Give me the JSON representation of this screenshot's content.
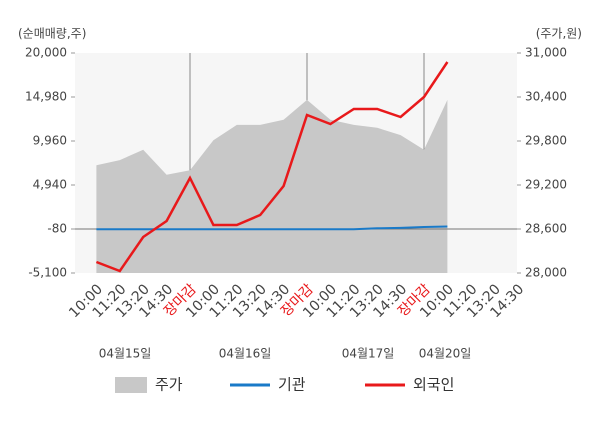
{
  "chart_data": {
    "type": "line",
    "y_axis_label": "(순매매량,주)",
    "y2_axis_label": "(주가,원)",
    "categories": [
      "10:00",
      "11:20",
      "13:20",
      "14:30",
      "장마감",
      "10:00",
      "11:20",
      "13:20",
      "14:30",
      "장마감",
      "10:00",
      "11:20",
      "13:20",
      "14:30",
      "장마감",
      "10:00",
      "11:20",
      "13:20",
      "14:30"
    ],
    "dates": [
      "04월15일",
      "04월16일",
      "04월17일",
      "04월20일"
    ],
    "ylim": [
      -5100,
      20000
    ],
    "yticks": [
      {
        "value": -5100,
        "label": "-5,100"
      },
      -80,
      {
        "value": 4940,
        "label": "4,940"
      },
      {
        "value": 9960,
        "label": "9,960"
      },
      {
        "value": 14980,
        "label": "14,980"
      },
      {
        "value": 20000,
        "label": "20,000"
      }
    ],
    "y2lim": [
      28000,
      31000
    ],
    "y2ticks": [
      {
        "value": 28000,
        "label": "28,000"
      },
      {
        "value": 28600,
        "label": "28,600"
      },
      {
        "value": 29200,
        "label": "29,200"
      },
      {
        "value": 29800,
        "label": "29,800"
      },
      {
        "value": 30400,
        "label": "30,400"
      },
      {
        "value": 31000,
        "label": "31,000"
      }
    ],
    "session_close_color": "#e8191b",
    "series": [
      {
        "name": "주가",
        "color": "#c8c8c8",
        "kind": "area",
        "axis": "y2",
        "values": [
          29470,
          29540,
          29680,
          29340,
          29400,
          29810,
          30020,
          30020,
          30090,
          30360,
          30090,
          30020,
          29980,
          29880,
          29680,
          30360,
          null,
          null,
          null
        ]
      },
      {
        "name": "기관",
        "color": "#1a7ac8",
        "kind": "line",
        "values": [
          -100,
          -100,
          -100,
          -100,
          -100,
          -100,
          -100,
          -100,
          -100,
          -100,
          -100,
          -100,
          0,
          50,
          150,
          200,
          null,
          null,
          null
        ]
      },
      {
        "name": "외국인",
        "color": "#e8191b",
        "kind": "line",
        "values": [
          -3845,
          -4870,
          -990,
          830,
          5740,
          380,
          380,
          1520,
          4830,
          12930,
          11900,
          13610,
          13610,
          12700,
          14980,
          18970,
          null,
          null,
          null
        ]
      }
    ]
  }
}
